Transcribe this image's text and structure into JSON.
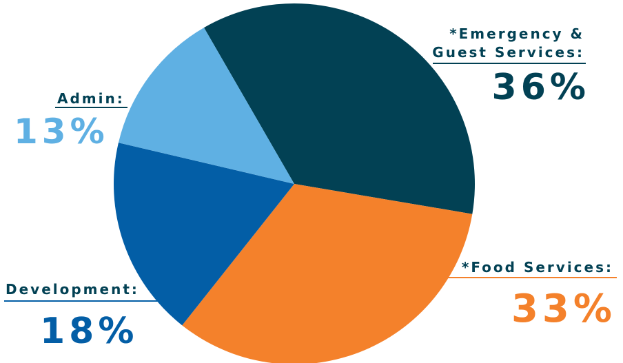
{
  "chart_data": {
    "type": "pie",
    "slices": [
      {
        "label": "*Emergency &",
        "label_line2": "Guest Services:",
        "value": 36,
        "value_text": "36%",
        "color": "#024154"
      },
      {
        "label": "*Food Services:",
        "value": 33,
        "value_text": "33%",
        "color": "#f4812b"
      },
      {
        "label": "Development:",
        "value": 18,
        "value_text": "18%",
        "color": "#035ea6"
      },
      {
        "label": "Admin:",
        "value": 13,
        "value_text": "13%",
        "color": "#5fb0e3"
      }
    ],
    "title": "",
    "legend": "none"
  }
}
